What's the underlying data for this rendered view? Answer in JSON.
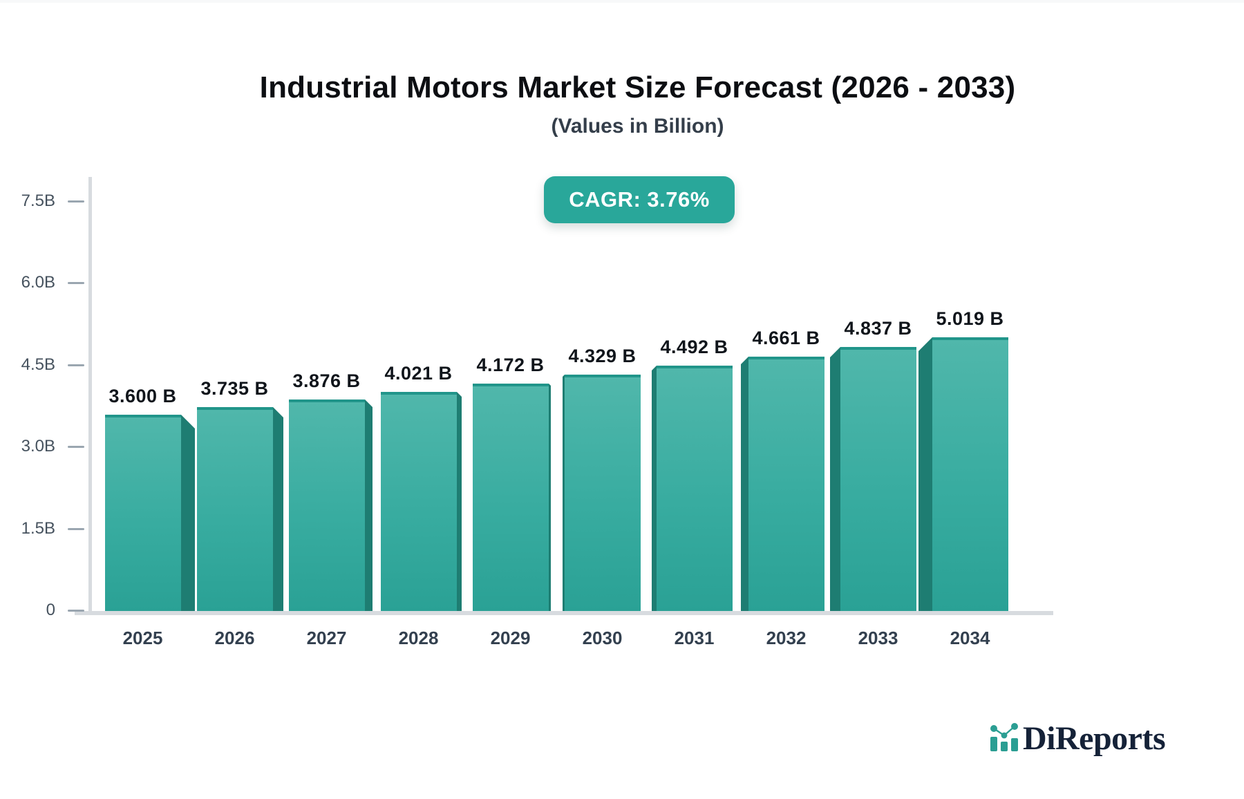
{
  "header": {
    "title": "Industrial Motors Market Size Forecast (2026 - 2033)",
    "subtitle": "(Values in Billion)",
    "cagr_badge": "CAGR: 3.76%"
  },
  "chart_data": {
    "type": "bar",
    "title": "Industrial Motors Market Size Forecast (2026 - 2033)",
    "subtitle": "(Values in Billion)",
    "unit": "Billion",
    "cagr_percent": 3.76,
    "categories": [
      "2025",
      "2026",
      "2027",
      "2028",
      "2029",
      "2030",
      "2031",
      "2032",
      "2033",
      "2034"
    ],
    "values": [
      3.6,
      3.735,
      3.876,
      4.021,
      4.172,
      4.329,
      4.492,
      4.661,
      4.837,
      5.019
    ],
    "value_labels": [
      "3.600 B",
      "3.735 B",
      "3.876 B",
      "4.021 B",
      "4.172 B",
      "4.329 B",
      "4.492 B",
      "4.661 B",
      "4.837 B",
      "5.019 B"
    ],
    "ylim": [
      0,
      7.5
    ],
    "ytick_values": [
      0,
      1.5,
      3.0,
      4.5,
      6.0,
      7.5
    ],
    "ytick_labels": [
      "0",
      "1.5B",
      "3.0B",
      "4.5B",
      "6.0B",
      "7.5B"
    ],
    "grid": false,
    "legend": "none",
    "bar_style": "3d-perspective"
  },
  "colors": {
    "bar_front_top": "#50b7ab",
    "bar_front_bottom": "#2aa195",
    "bar_side": "#1e7d72",
    "bar_top_edge": "#21958a",
    "badge_bg": "#29a79a",
    "axis": "#d7dbdf",
    "tick": "#9aa6b0",
    "ytick_text": "#46525e",
    "year_text": "#33404f",
    "value_text": "#10151b",
    "logo_navy": "#152238",
    "logo_teal": "#2b9e93"
  },
  "branding": {
    "logo_text": "DiReports",
    "logo_icon": "mini-bar-chart-icon"
  }
}
